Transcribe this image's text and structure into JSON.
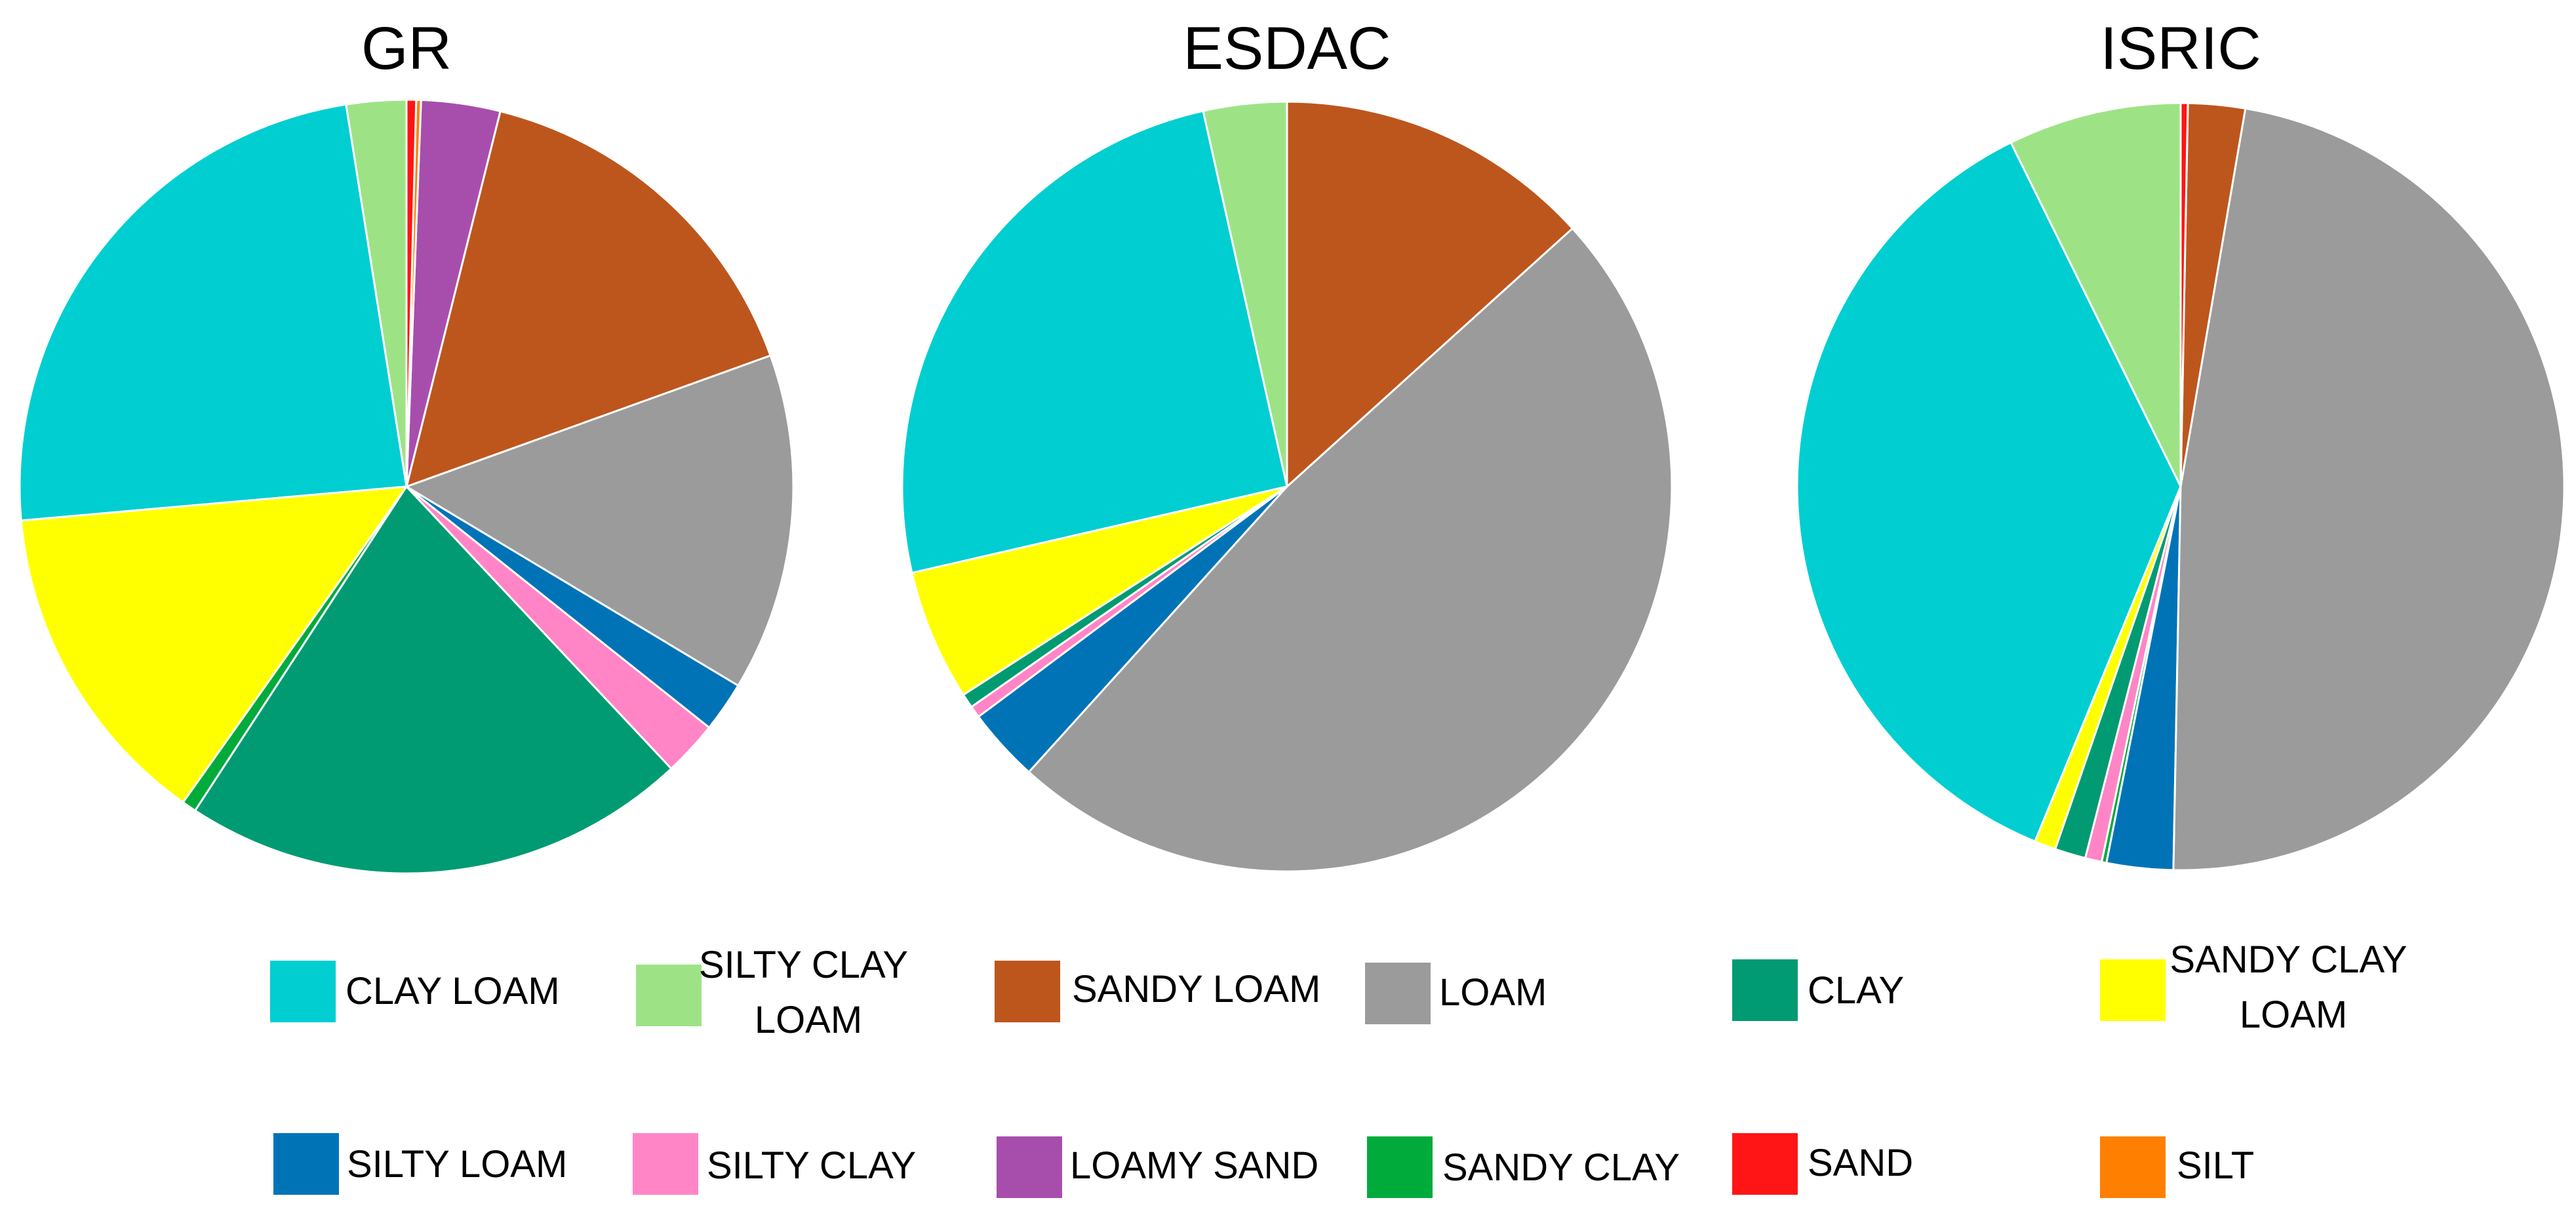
{
  "chart_data": [
    {
      "type": "pie",
      "title": "GR",
      "slices": [
        {
          "label": "SILTY CLAY LOAM",
          "value": 2.5
        },
        {
          "label": "CLAY LOAM",
          "value": 23.9
        },
        {
          "label": "SANDY CLAY LOAM",
          "value": 13.8
        },
        {
          "label": "SANDY CLAY",
          "value": 0.6
        },
        {
          "label": "CLAY",
          "value": 21.2
        },
        {
          "label": "SILTY CLAY",
          "value": 2.3
        },
        {
          "label": "SILTY LOAM",
          "value": 2.1
        },
        {
          "label": "LOAM",
          "value": 14.1
        },
        {
          "label": "SANDY LOAM",
          "value": 15.6
        },
        {
          "label": "LOAMY SAND",
          "value": 3.3
        },
        {
          "label": "SILT",
          "value": 0.2
        },
        {
          "label": "SAND",
          "value": 0.4
        }
      ]
    },
    {
      "type": "pie",
      "title": "ESDAC",
      "slices": [
        {
          "label": "SILTY CLAY LOAM",
          "value": 3.5
        },
        {
          "label": "CLAY LOAM",
          "value": 25.1
        },
        {
          "label": "SANDY CLAY LOAM",
          "value": 5.5
        },
        {
          "label": "CLAY",
          "value": 0.6
        },
        {
          "label": "SILTY CLAY",
          "value": 0.5
        },
        {
          "label": "SILTY LOAM",
          "value": 3.1
        },
        {
          "label": "LOAM",
          "value": 48.4
        },
        {
          "label": "SANDY LOAM",
          "value": 13.3
        }
      ]
    },
    {
      "type": "pie",
      "title": "ISRIC",
      "slices": [
        {
          "label": "SILTY CLAY LOAM",
          "value": 7.3
        },
        {
          "label": "CLAY LOAM",
          "value": 36.5
        },
        {
          "label": "SANDY CLAY LOAM",
          "value": 0.9
        },
        {
          "label": "CLAY",
          "value": 1.3
        },
        {
          "label": "SILTY CLAY",
          "value": 0.7
        },
        {
          "label": "SANDY CLAY",
          "value": 0.2
        },
        {
          "label": "SILTY LOAM",
          "value": 2.8
        },
        {
          "label": "LOAM",
          "value": 47.6
        },
        {
          "label": "SANDY LOAM",
          "value": 2.4
        },
        {
          "label": "SAND",
          "value": 0.3
        }
      ]
    }
  ],
  "legend": [
    {
      "label": "CLAY LOAM",
      "color": "#00CED1"
    },
    {
      "label": "SILTY CLAY LOAM",
      "color": "#9DE385"
    },
    {
      "label": "SANDY LOAM",
      "color": "#BD561D"
    },
    {
      "label": "LOAM",
      "color": "#9B9B9B"
    },
    {
      "label": "CLAY",
      "color": "#009B72"
    },
    {
      "label": "SANDY CLAY LOAM",
      "color": "#FFFF00"
    },
    {
      "label": "SILTY LOAM",
      "color": "#0073B7"
    },
    {
      "label": "SILTY CLAY",
      "color": "#FF85C7"
    },
    {
      "label": "LOAMY SAND",
      "color": "#A74EAC"
    },
    {
      "label": "SANDY CLAY",
      "color": "#00AB3C"
    },
    {
      "label": "SAND",
      "color": "#FF1515"
    },
    {
      "label": "SILT",
      "color": "#FF8000"
    }
  ],
  "legend_placement": "bottom",
  "start_angle_deg": 0,
  "direction": "counter-clockwise"
}
